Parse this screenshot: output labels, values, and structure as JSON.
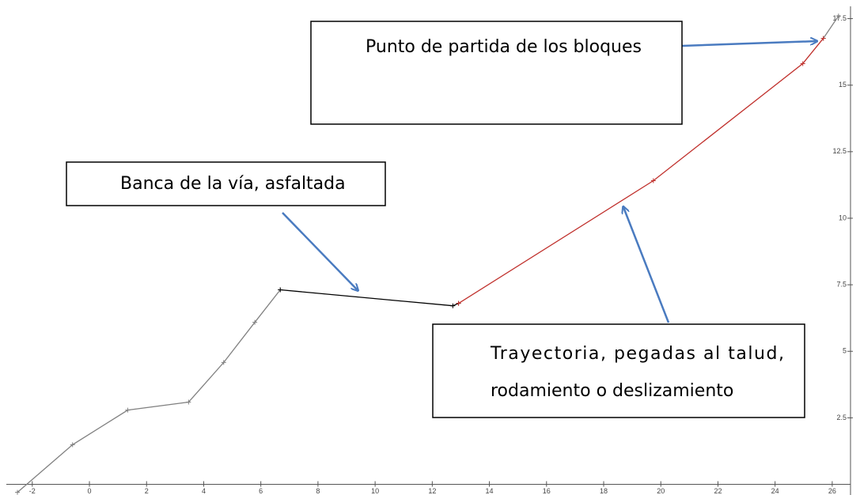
{
  "chart_data": {
    "type": "line",
    "xlim": [
      -3.13,
      26.64
    ],
    "ylim": [
      -0.4,
      18.2
    ],
    "xticks": [
      -2,
      0,
      2,
      4,
      6,
      8,
      10,
      12,
      14,
      16,
      18,
      20,
      22,
      24,
      26
    ],
    "yticks": [
      2.5,
      5,
      7.5,
      10,
      12.5,
      15,
      17.5
    ],
    "series": [
      {
        "color": "#808080",
        "x": [
          -2.52,
          -0.59,
          1.34,
          3.47,
          4.7,
          5.79,
          6.68,
          null,
          25.69,
          26.22
        ],
        "values": [
          -0.3,
          1.49,
          2.79,
          3.09,
          4.58,
          6.09,
          7.31,
          null,
          16.76,
          17.6
        ]
      },
      {
        "color": "#000000",
        "x": [
          6.68,
          12.72,
          12.92
        ],
        "values": [
          7.31,
          6.71,
          6.8
        ]
      },
      {
        "color": "#c0302c",
        "x": [
          12.92,
          19.74,
          24.97,
          25.69
        ],
        "values": [
          6.8,
          11.41,
          15.81,
          16.76
        ]
      }
    ],
    "annotations": [
      "Punto de partida de los bloques",
      "Banca de la vía, asfaltada",
      "Trayectoria, pegadas al talud,",
      "rodamiento o deslizamiento"
    ]
  }
}
